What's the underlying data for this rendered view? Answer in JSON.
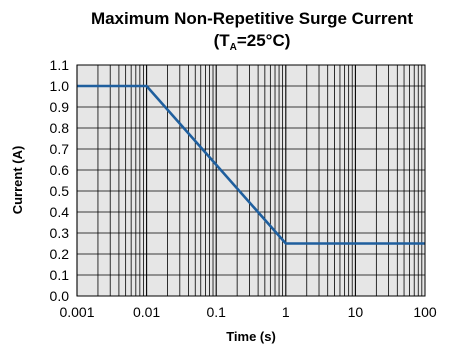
{
  "chart_data": {
    "type": "line",
    "title": "Maximum Non-Repetitive Surge Current",
    "subtitle_prefix": "(T",
    "subtitle_sub": "A",
    "subtitle_suffix": "=25°C)",
    "xlabel": "Time (s)",
    "ylabel": "Current (A)",
    "x_scale": "log",
    "xlim": [
      0.001,
      100
    ],
    "ylim": [
      0.0,
      1.1
    ],
    "x_tick_labels": [
      "0.001",
      "0.01",
      "0.1",
      "1",
      "10",
      "100"
    ],
    "y_tick_labels": [
      "0.0",
      "0.1",
      "0.2",
      "0.3",
      "0.4",
      "0.5",
      "0.6",
      "0.7",
      "0.8",
      "0.9",
      "1.0",
      "1.1"
    ],
    "grid": true,
    "series": [
      {
        "x": [
          0.001,
          0.01,
          1,
          100
        ],
        "y": [
          1.0,
          1.0,
          0.25,
          0.25
        ]
      }
    ],
    "colors": {
      "line": "#1f5f9e",
      "plot_bg": "#e6e6e6",
      "grid": "#000000"
    }
  }
}
